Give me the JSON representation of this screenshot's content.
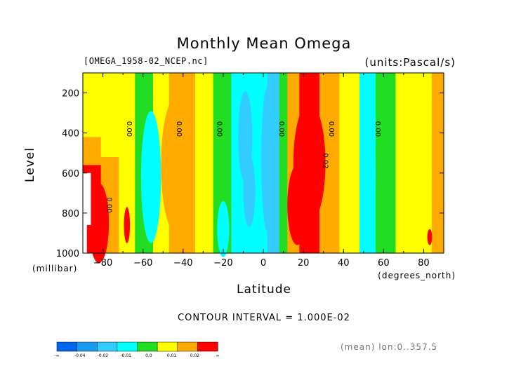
{
  "chart_data": {
    "type": "heatmap",
    "title": "Monthly Mean Omega",
    "file_label": "[OMEGA_1958-02_NCEP.nc]",
    "units_label": "(units:Pascal/s)",
    "xlabel": "Latitude",
    "xunit": "(degrees_north)",
    "ylabel": "Level",
    "yunit": "(millibar)",
    "xlim": [
      -90,
      90
    ],
    "ylim": [
      1000,
      100
    ],
    "x_ticks": [
      -80,
      -60,
      -40,
      -20,
      0,
      20,
      40,
      60,
      80
    ],
    "y_ticks": [
      200,
      400,
      600,
      800,
      1000
    ],
    "contour_interval_label": "CONTOUR INTERVAL = 1.000E-02",
    "averaging_note": "(mean) lon:0..357.5",
    "color_scale": {
      "colors": [
        "#0066ee",
        "#1a9bf0",
        "#33ccff",
        "#00ffff",
        "#22dd22",
        "#ffff00",
        "#ffaa00",
        "#ff0000"
      ],
      "labels": [
        "-∞",
        "-0.04",
        "-0.02",
        "-0.01",
        "0.0",
        "0.01",
        "0.02",
        "∞"
      ]
    },
    "bands": [
      {
        "x0": -90,
        "x1": -81,
        "y0": 100,
        "y1": 420,
        "level": 5
      },
      {
        "x0": -90,
        "x1": -81,
        "y0": 420,
        "y1": 560,
        "level": 6
      },
      {
        "x0": -90,
        "x1": -81,
        "y0": 560,
        "y1": 1000,
        "level": 7
      },
      {
        "x0": -81,
        "x1": -72,
        "y0": 100,
        "y1": 520,
        "level": 5
      },
      {
        "x0": -81,
        "x1": -72,
        "y0": 520,
        "y1": 1000,
        "level": 6
      },
      {
        "x0": -72,
        "x1": -64,
        "y0": 100,
        "y1": 1000,
        "level": 5
      },
      {
        "x0": -64,
        "x1": -55,
        "y0": 100,
        "y1": 1000,
        "level": 4
      },
      {
        "x0": -55,
        "x1": -47,
        "y0": 100,
        "y1": 1000,
        "level": 5
      },
      {
        "x0": -47,
        "x1": -34,
        "y0": 100,
        "y1": 1000,
        "level": 6
      },
      {
        "x0": -34,
        "x1": -25,
        "y0": 100,
        "y1": 1000,
        "level": 5
      },
      {
        "x0": -25,
        "x1": -16,
        "y0": 100,
        "y1": 1000,
        "level": 4
      },
      {
        "x0": -16,
        "x1": 2,
        "y0": 100,
        "y1": 1000,
        "level": 3
      },
      {
        "x0": 2,
        "x1": 8,
        "y0": 100,
        "y1": 1000,
        "level": 2
      },
      {
        "x0": 8,
        "x1": 12,
        "y0": 100,
        "y1": 1000,
        "level": 4
      },
      {
        "x0": 12,
        "x1": 18,
        "y0": 100,
        "y1": 1000,
        "level": 6
      },
      {
        "x0": 18,
        "x1": 28,
        "y0": 100,
        "y1": 1000,
        "level": 7
      },
      {
        "x0": 28,
        "x1": 38,
        "y0": 100,
        "y1": 1000,
        "level": 6
      },
      {
        "x0": 38,
        "x1": 48,
        "y0": 100,
        "y1": 1000,
        "level": 5
      },
      {
        "x0": 48,
        "x1": 56,
        "y0": 100,
        "y1": 1000,
        "level": 3
      },
      {
        "x0": 56,
        "x1": 66,
        "y0": 100,
        "y1": 1000,
        "level": 4
      },
      {
        "x0": 66,
        "x1": 84,
        "y0": 100,
        "y1": 1000,
        "level": 5
      },
      {
        "x0": 84,
        "x1": 90,
        "y0": 100,
        "y1": 1000,
        "level": 6
      }
    ],
    "contour_labels": [
      {
        "x": -78,
        "y": 760,
        "text": "0.00"
      },
      {
        "x": -68,
        "y": 380,
        "text": "0.00"
      },
      {
        "x": -43,
        "y": 380,
        "text": "0.00"
      },
      {
        "x": -23,
        "y": 380,
        "text": "0.00"
      },
      {
        "x": 8,
        "y": 380,
        "text": "0.00"
      },
      {
        "x": 30,
        "y": 540,
        "text": "0.02"
      },
      {
        "x": 33,
        "y": 380,
        "text": "0.00"
      },
      {
        "x": 56,
        "y": 380,
        "text": "0.00"
      }
    ]
  }
}
